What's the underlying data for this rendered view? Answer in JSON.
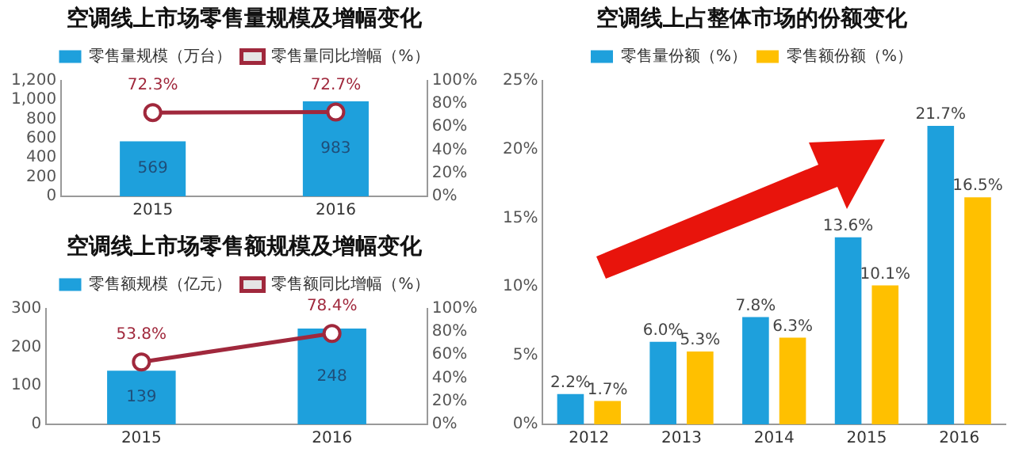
{
  "chart_data": [
    {
      "type": "bar",
      "title": "空调线上市场零售量规模及增幅变化",
      "categories": [
        "2015",
        "2016"
      ],
      "legend": "top",
      "series": [
        {
          "name": "零售量规模（万台）",
          "color": "#1ea0dc",
          "values": [
            569,
            983
          ],
          "value_labels": [
            "569",
            "983"
          ]
        },
        {
          "name": "零售量同比增幅（%）",
          "type": "line",
          "axis": "y2",
          "marker": "circle",
          "color": "#a0283c",
          "values": [
            72.3,
            72.7
          ],
          "value_labels": [
            "72.3%",
            "72.7%"
          ]
        }
      ],
      "ylim": [
        0,
        1200
      ],
      "yticks": [
        0,
        200,
        400,
        600,
        800,
        {
          "value": 1000,
          "label": "1,000"
        },
        {
          "value": 1200,
          "label": "1,200"
        }
      ],
      "y2lim": [
        0,
        100
      ],
      "y2ticks": [
        {
          "value": 0,
          "label": "0%"
        },
        {
          "value": 20,
          "label": "20%"
        },
        {
          "value": 40,
          "label": "40%"
        },
        {
          "value": 60,
          "label": "60%"
        },
        {
          "value": 80,
          "label": "80%"
        },
        {
          "value": 100,
          "label": "100%"
        }
      ]
    },
    {
      "type": "bar",
      "title": "空调线上市场零售额规模及增幅变化",
      "categories": [
        "2015",
        "2016"
      ],
      "legend": "top",
      "series": [
        {
          "name": "零售额规模（亿元）",
          "color": "#1ea0dc",
          "values": [
            139,
            248
          ],
          "value_labels": [
            "139",
            "248"
          ]
        },
        {
          "name": "零售额同比增幅（%）",
          "type": "line",
          "axis": "y2",
          "marker": "circle",
          "color": "#a0283c",
          "values": [
            53.8,
            78.4
          ],
          "value_labels": [
            "53.8%",
            "78.4%"
          ]
        }
      ],
      "ylim": [
        0,
        300
      ],
      "yticks": [
        0,
        100,
        200,
        300
      ],
      "y2lim": [
        0,
        100
      ],
      "y2ticks": [
        {
          "value": 0,
          "label": "0%"
        },
        {
          "value": 20,
          "label": "20%"
        },
        {
          "value": 40,
          "label": "40%"
        },
        {
          "value": 60,
          "label": "60%"
        },
        {
          "value": 80,
          "label": "80%"
        },
        {
          "value": 100,
          "label": "100%"
        }
      ]
    },
    {
      "type": "bar",
      "title": "空调线上占整体市场的份额变化",
      "categories": [
        "2012",
        "2013",
        "2014",
        "2015",
        "2016"
      ],
      "legend": "top",
      "series": [
        {
          "name": "零售量份额（%）",
          "color": "#1ea0dc",
          "values": [
            2.2,
            6.0,
            7.8,
            13.6,
            21.7
          ],
          "value_labels": [
            "2.2%",
            "6.0%",
            "7.8%",
            "13.6%",
            "21.7%"
          ]
        },
        {
          "name": "零售额份额（%）",
          "color": "#ffc000",
          "values": [
            1.7,
            5.3,
            6.3,
            10.1,
            16.5
          ],
          "value_labels": [
            "1.7%",
            "5.3%",
            "6.3%",
            "10.1%",
            "16.5%"
          ]
        }
      ],
      "ylim": [
        0,
        25
      ],
      "yticks": [
        {
          "value": 0,
          "label": "0%"
        },
        {
          "value": 5,
          "label": "5%"
        },
        {
          "value": 10,
          "label": "10%"
        },
        {
          "value": 15,
          "label": "15%"
        },
        {
          "value": 20,
          "label": "20%"
        },
        {
          "value": 25,
          "label": "25%"
        }
      ]
    }
  ]
}
